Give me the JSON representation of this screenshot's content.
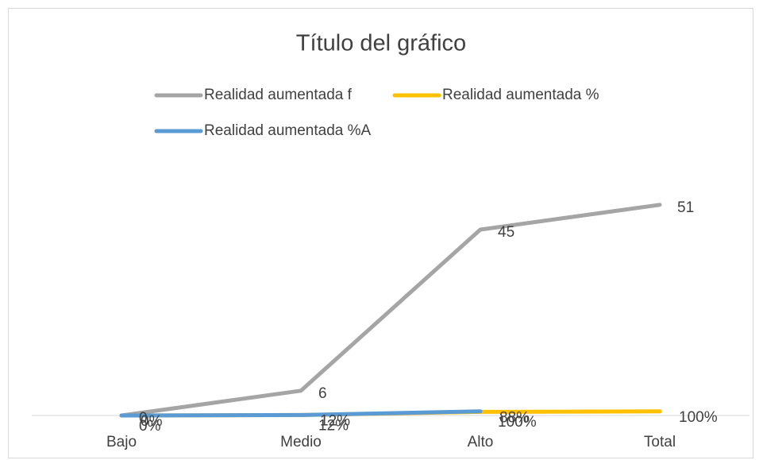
{
  "chart_data": {
    "type": "line",
    "title": "Título del gráfico",
    "categories": [
      "Bajo",
      "Medio",
      "Alto",
      "Total"
    ],
    "ylim": [
      0,
      60
    ],
    "series": [
      {
        "name": "Realidad aumentada f",
        "color": "#a5a5a5",
        "values": [
          0,
          6,
          45,
          51
        ]
      },
      {
        "name": "Realidad aumentada %",
        "color": "#ffc000",
        "values": [
          0,
          0.12,
          0.88,
          1
        ],
        "value_labels": [
          "0%",
          "12%",
          "88%",
          "100%"
        ]
      },
      {
        "name": "Realidad aumentada %A",
        "color": "#5b9bd5",
        "values": [
          0,
          0.12,
          1,
          null
        ],
        "value_labels": [
          "0%",
          "12%",
          "100%",
          null
        ]
      }
    ]
  }
}
